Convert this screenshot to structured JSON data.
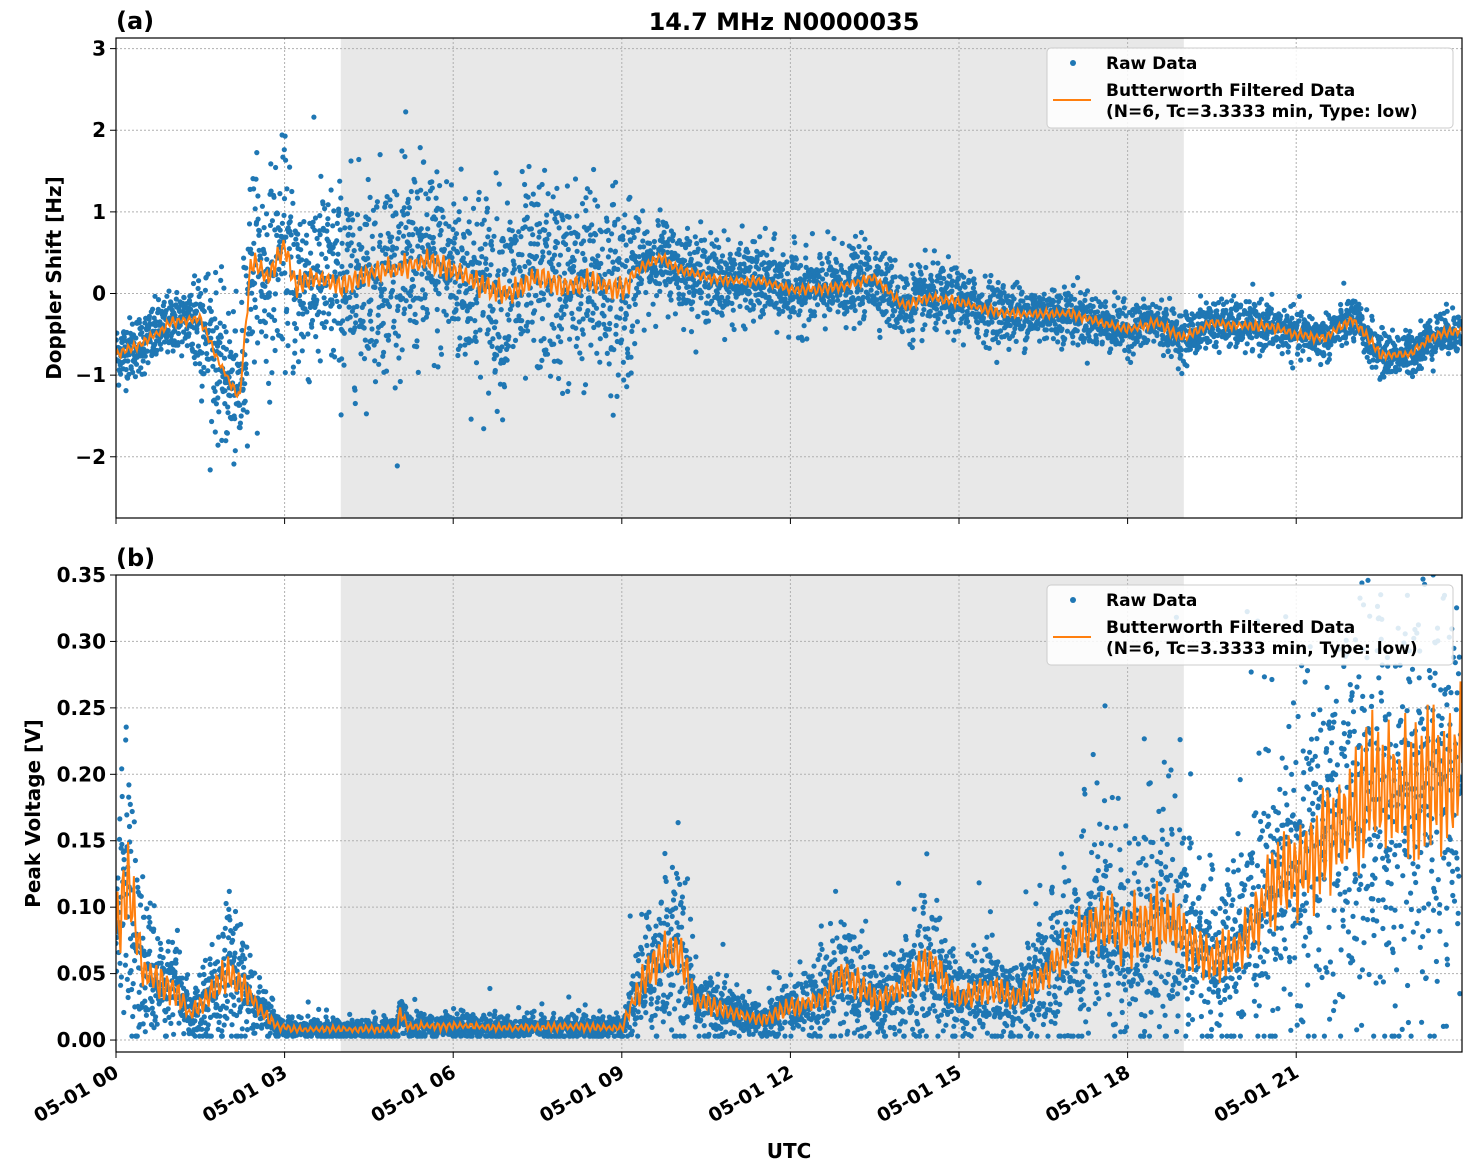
{
  "chart_data": [
    {
      "panel_label": "(a)",
      "title": "14.7 MHz N0000035",
      "type": "scatter",
      "ylabel": "Doppler Shift [Hz]",
      "xlabel": "",
      "xlim_hours": [
        0,
        23.95
      ],
      "ylim": [
        -2.75,
        3.13
      ],
      "yticks": [
        -2,
        -1,
        0,
        1,
        2,
        3
      ],
      "ytick_labels": [
        "−2",
        "−1",
        "0",
        "1",
        "2",
        "3"
      ],
      "grid": true,
      "shaded_region_utc": [
        "04:00",
        "19:00"
      ],
      "legend": {
        "placement": "top-right",
        "entries": [
          "Raw Data",
          "Butterworth Filtered Data",
          "(N=6, Tc=3.3333 min, Type: low)"
        ]
      },
      "series": [
        {
          "name": "Butterworth Filtered Data",
          "type": "line",
          "color": "#ff7f0e",
          "x": [
            0,
            0.5,
            1,
            1.5,
            1.8,
            2.2,
            2.4,
            2.7,
            3,
            3.2,
            3.5,
            4,
            4.5,
            5,
            5.5,
            6,
            6.5,
            7,
            7.5,
            8,
            8.5,
            9,
            9.3,
            9.7,
            10,
            10.5,
            11,
            11.5,
            12,
            12.5,
            13,
            13.5,
            14,
            14.5,
            15,
            15.5,
            16,
            16.5,
            17,
            17.5,
            18,
            18.5,
            19,
            19.5,
            20,
            20.5,
            21,
            21.5,
            22,
            22.5,
            23,
            23.5,
            23.95
          ],
          "y": [
            -0.75,
            -0.6,
            -0.35,
            -0.3,
            -0.8,
            -1.3,
            0.4,
            0.2,
            0.6,
            0.1,
            0.2,
            0.1,
            0.25,
            0.3,
            0.4,
            0.3,
            0.1,
            0.0,
            0.2,
            0.1,
            0.15,
            0.05,
            0.3,
            0.45,
            0.3,
            0.2,
            0.15,
            0.15,
            0.05,
            0.05,
            0.1,
            0.2,
            -0.15,
            -0.05,
            -0.1,
            -0.2,
            -0.25,
            -0.25,
            -0.25,
            -0.35,
            -0.45,
            -0.35,
            -0.55,
            -0.35,
            -0.4,
            -0.4,
            -0.5,
            -0.55,
            -0.3,
            -0.75,
            -0.75,
            -0.5,
            -0.45
          ]
        },
        {
          "name": "Raw Data",
          "type": "scatter",
          "color": "#1f77b4",
          "spread_by_hour": {
            "x": [
              0,
              1.3,
              1.4,
              2.2,
              2.3,
              9.2,
              9.3,
              13.5,
              18,
              23.95
            ],
            "halfwidth": [
              0.25,
              0.25,
              0.6,
              0.6,
              0.8,
              0.8,
              0.35,
              0.3,
              0.2,
              0.18
            ]
          }
        }
      ]
    },
    {
      "panel_label": "(b)",
      "type": "scatter",
      "ylabel": "Peak Voltage [V]",
      "xlabel": "UTC",
      "xlim_hours": [
        0,
        23.95
      ],
      "ylim": [
        -0.009,
        0.35
      ],
      "yticks": [
        0,
        0.05,
        0.1,
        0.15,
        0.2,
        0.25,
        0.3,
        0.35
      ],
      "ytick_labels": [
        "0.00",
        "0.05",
        "0.10",
        "0.15",
        "0.20",
        "0.25",
        "0.30",
        "0.35"
      ],
      "xtick_labels": [
        "05-01 00",
        "05-01 03",
        "05-01 06",
        "05-01 09",
        "05-01 12",
        "05-01 15",
        "05-01 18",
        "05-01 21"
      ],
      "xticks_hours": [
        0,
        3,
        6,
        9,
        12,
        15,
        18,
        21
      ],
      "grid": true,
      "shaded_region_utc": [
        "04:00",
        "19:00"
      ],
      "legend": {
        "placement": "top-right",
        "entries": [
          "Raw Data",
          "Butterworth Filtered Data",
          "(N=6, Tc=3.3333 min, Type: low)"
        ]
      },
      "series": [
        {
          "name": "Butterworth Filtered Data",
          "type": "line",
          "color": "#ff7f0e",
          "x": [
            0,
            0.2,
            0.5,
            1,
            1.3,
            1.6,
            2,
            2.3,
            2.6,
            2.9,
            3.2,
            5,
            5.05,
            5.2,
            6,
            7,
            8,
            9,
            9.2,
            9.6,
            10,
            10.3,
            11,
            11.5,
            12,
            12.5,
            13,
            13.5,
            14,
            14.5,
            15,
            15.5,
            16,
            16.5,
            17,
            17.5,
            18,
            18.5,
            19,
            19.5,
            20,
            20.5,
            21,
            21.5,
            22,
            22.5,
            23,
            23.5,
            23.95
          ],
          "y": [
            0.08,
            0.12,
            0.05,
            0.04,
            0.02,
            0.03,
            0.05,
            0.04,
            0.02,
            0.01,
            0.008,
            0.008,
            0.022,
            0.01,
            0.011,
            0.009,
            0.01,
            0.009,
            0.03,
            0.06,
            0.07,
            0.03,
            0.02,
            0.015,
            0.025,
            0.03,
            0.05,
            0.03,
            0.04,
            0.06,
            0.03,
            0.04,
            0.03,
            0.05,
            0.07,
            0.09,
            0.08,
            0.09,
            0.08,
            0.06,
            0.07,
            0.11,
            0.13,
            0.15,
            0.17,
            0.19,
            0.19,
            0.2,
            0.21
          ]
        },
        {
          "name": "Raw Data",
          "type": "scatter",
          "color": "#1f77b4",
          "spread_relative": 0.55
        }
      ]
    }
  ],
  "colors": {
    "raw": "#1f77b4",
    "filtered": "#ff7f0e",
    "shade": "#e8e8e8"
  }
}
